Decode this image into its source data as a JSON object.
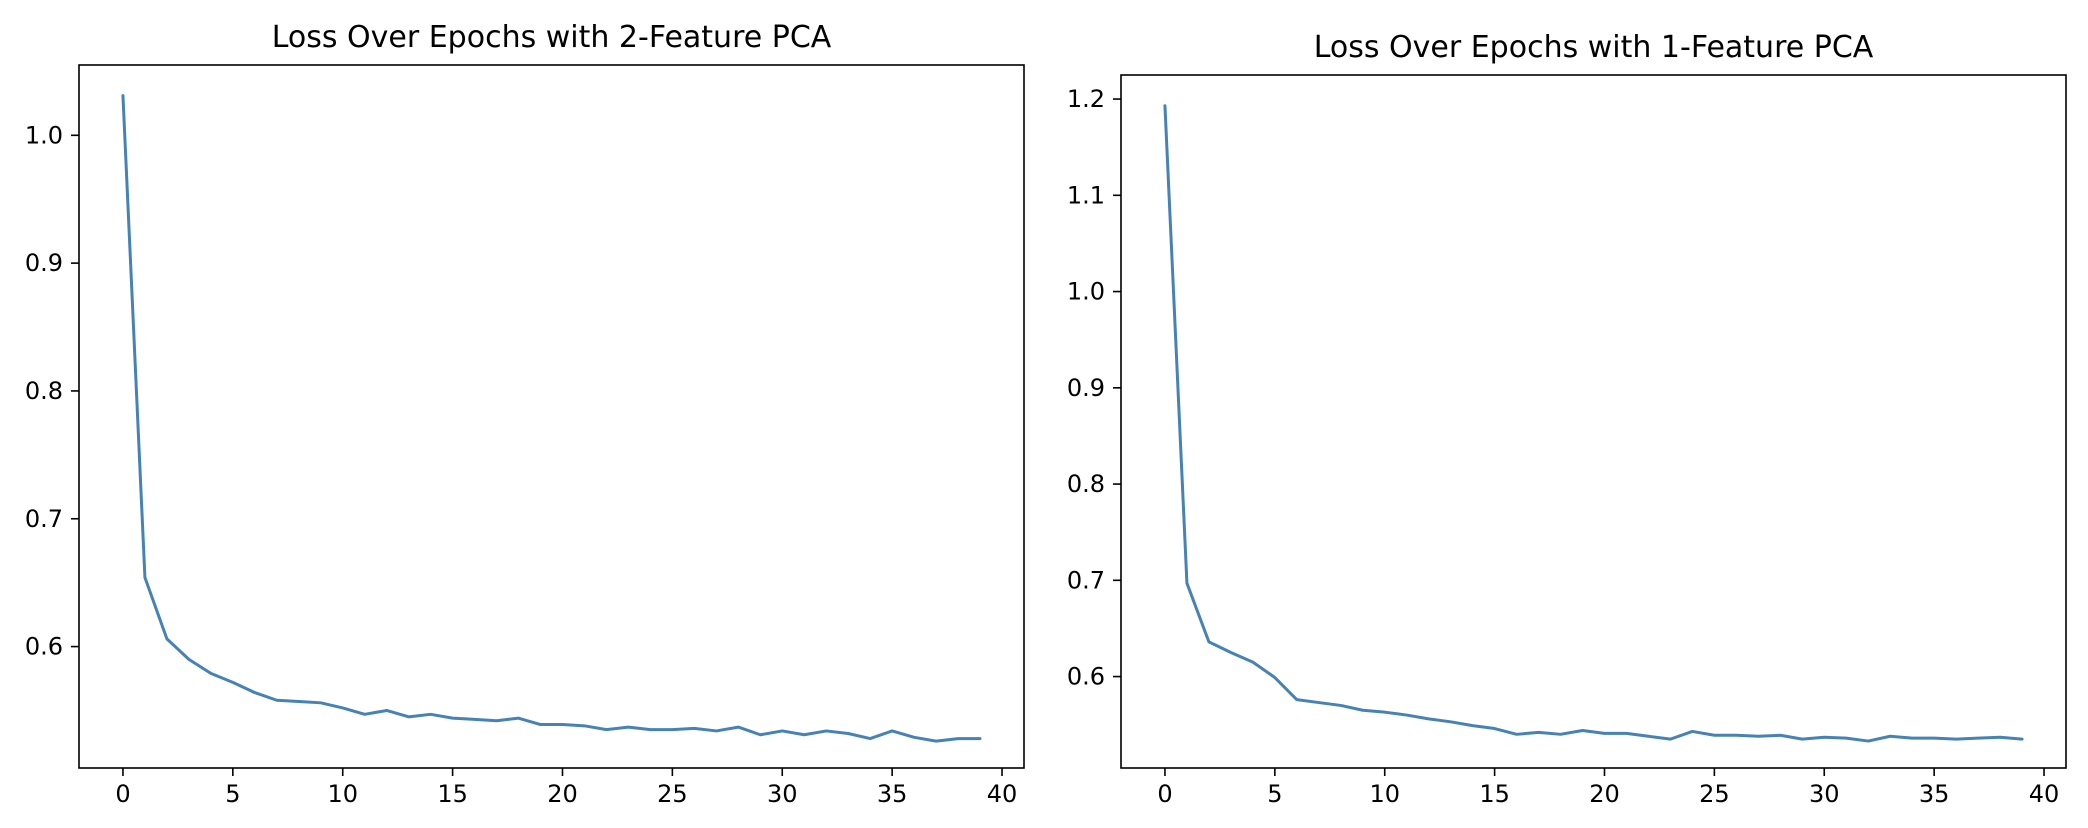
{
  "chart_data": [
    {
      "type": "line",
      "title": "Loss Over Epochs with 2-Feature PCA",
      "xlabel": "",
      "ylabel": "",
      "xlim": [
        -2,
        41
      ],
      "ylim": [
        0.505,
        1.055
      ],
      "xticks": [
        0,
        5,
        10,
        15,
        20,
        25,
        30,
        35,
        40
      ],
      "xtick_labels": [
        "0",
        "5",
        "10",
        "15",
        "20",
        "25",
        "30",
        "35",
        "40"
      ],
      "yticks": [
        0.6,
        0.7,
        0.8,
        0.9,
        1.0
      ],
      "ytick_labels": [
        "0.6",
        "0.7",
        "0.8",
        "0.9",
        "1.0"
      ],
      "grid": false,
      "series": [
        {
          "color": "#4682b4",
          "x": [
            0,
            1,
            2,
            3,
            4,
            5,
            6,
            7,
            8,
            9,
            10,
            11,
            12,
            13,
            14,
            15,
            16,
            17,
            18,
            19,
            20,
            21,
            22,
            23,
            24,
            25,
            26,
            27,
            28,
            29,
            30,
            31,
            32,
            33,
            34,
            35,
            36,
            37,
            38,
            39
          ],
          "y": [
            1.031,
            0.654,
            0.606,
            0.59,
            0.579,
            0.572,
            0.564,
            0.558,
            0.557,
            0.556,
            0.552,
            0.547,
            0.55,
            0.545,
            0.547,
            0.544,
            0.543,
            0.542,
            0.544,
            0.539,
            0.539,
            0.538,
            0.535,
            0.537,
            0.535,
            0.535,
            0.536,
            0.534,
            0.537,
            0.531,
            0.534,
            0.531,
            0.534,
            0.532,
            0.528,
            0.534,
            0.529,
            0.526,
            0.528,
            0.528
          ]
        }
      ]
    },
    {
      "type": "line",
      "title": "Loss Over Epochs with 1-Feature PCA",
      "xlabel": "",
      "ylabel": "",
      "xlim": [
        -2,
        41
      ],
      "ylim": [
        0.505,
        1.225
      ],
      "xticks": [
        0,
        5,
        10,
        15,
        20,
        25,
        30,
        35,
        40
      ],
      "xtick_labels": [
        "0",
        "5",
        "10",
        "15",
        "20",
        "25",
        "30",
        "35",
        "40"
      ],
      "yticks": [
        0.6,
        0.7,
        0.8,
        0.9,
        1.0,
        1.1,
        1.2
      ],
      "ytick_labels": [
        "0.6",
        "0.7",
        "0.8",
        "0.9",
        "1.0",
        "1.1",
        "1.2"
      ],
      "grid": false,
      "series": [
        {
          "color": "#4682b4",
          "x": [
            0,
            1,
            2,
            3,
            4,
            5,
            6,
            7,
            8,
            9,
            10,
            11,
            12,
            13,
            14,
            15,
            16,
            17,
            18,
            19,
            20,
            21,
            22,
            23,
            24,
            25,
            26,
            27,
            28,
            29,
            30,
            31,
            32,
            33,
            34,
            35,
            36,
            37,
            38,
            39
          ],
          "y": [
            1.193,
            0.697,
            0.636,
            0.625,
            0.615,
            0.599,
            0.576,
            0.573,
            0.57,
            0.565,
            0.563,
            0.56,
            0.556,
            0.553,
            0.549,
            0.546,
            0.54,
            0.542,
            0.54,
            0.544,
            0.541,
            0.541,
            0.538,
            0.535,
            0.543,
            0.539,
            0.539,
            0.538,
            0.539,
            0.535,
            0.537,
            0.536,
            0.533,
            0.538,
            0.536,
            0.536,
            0.535,
            0.536,
            0.537,
            0.535
          ]
        }
      ]
    }
  ]
}
